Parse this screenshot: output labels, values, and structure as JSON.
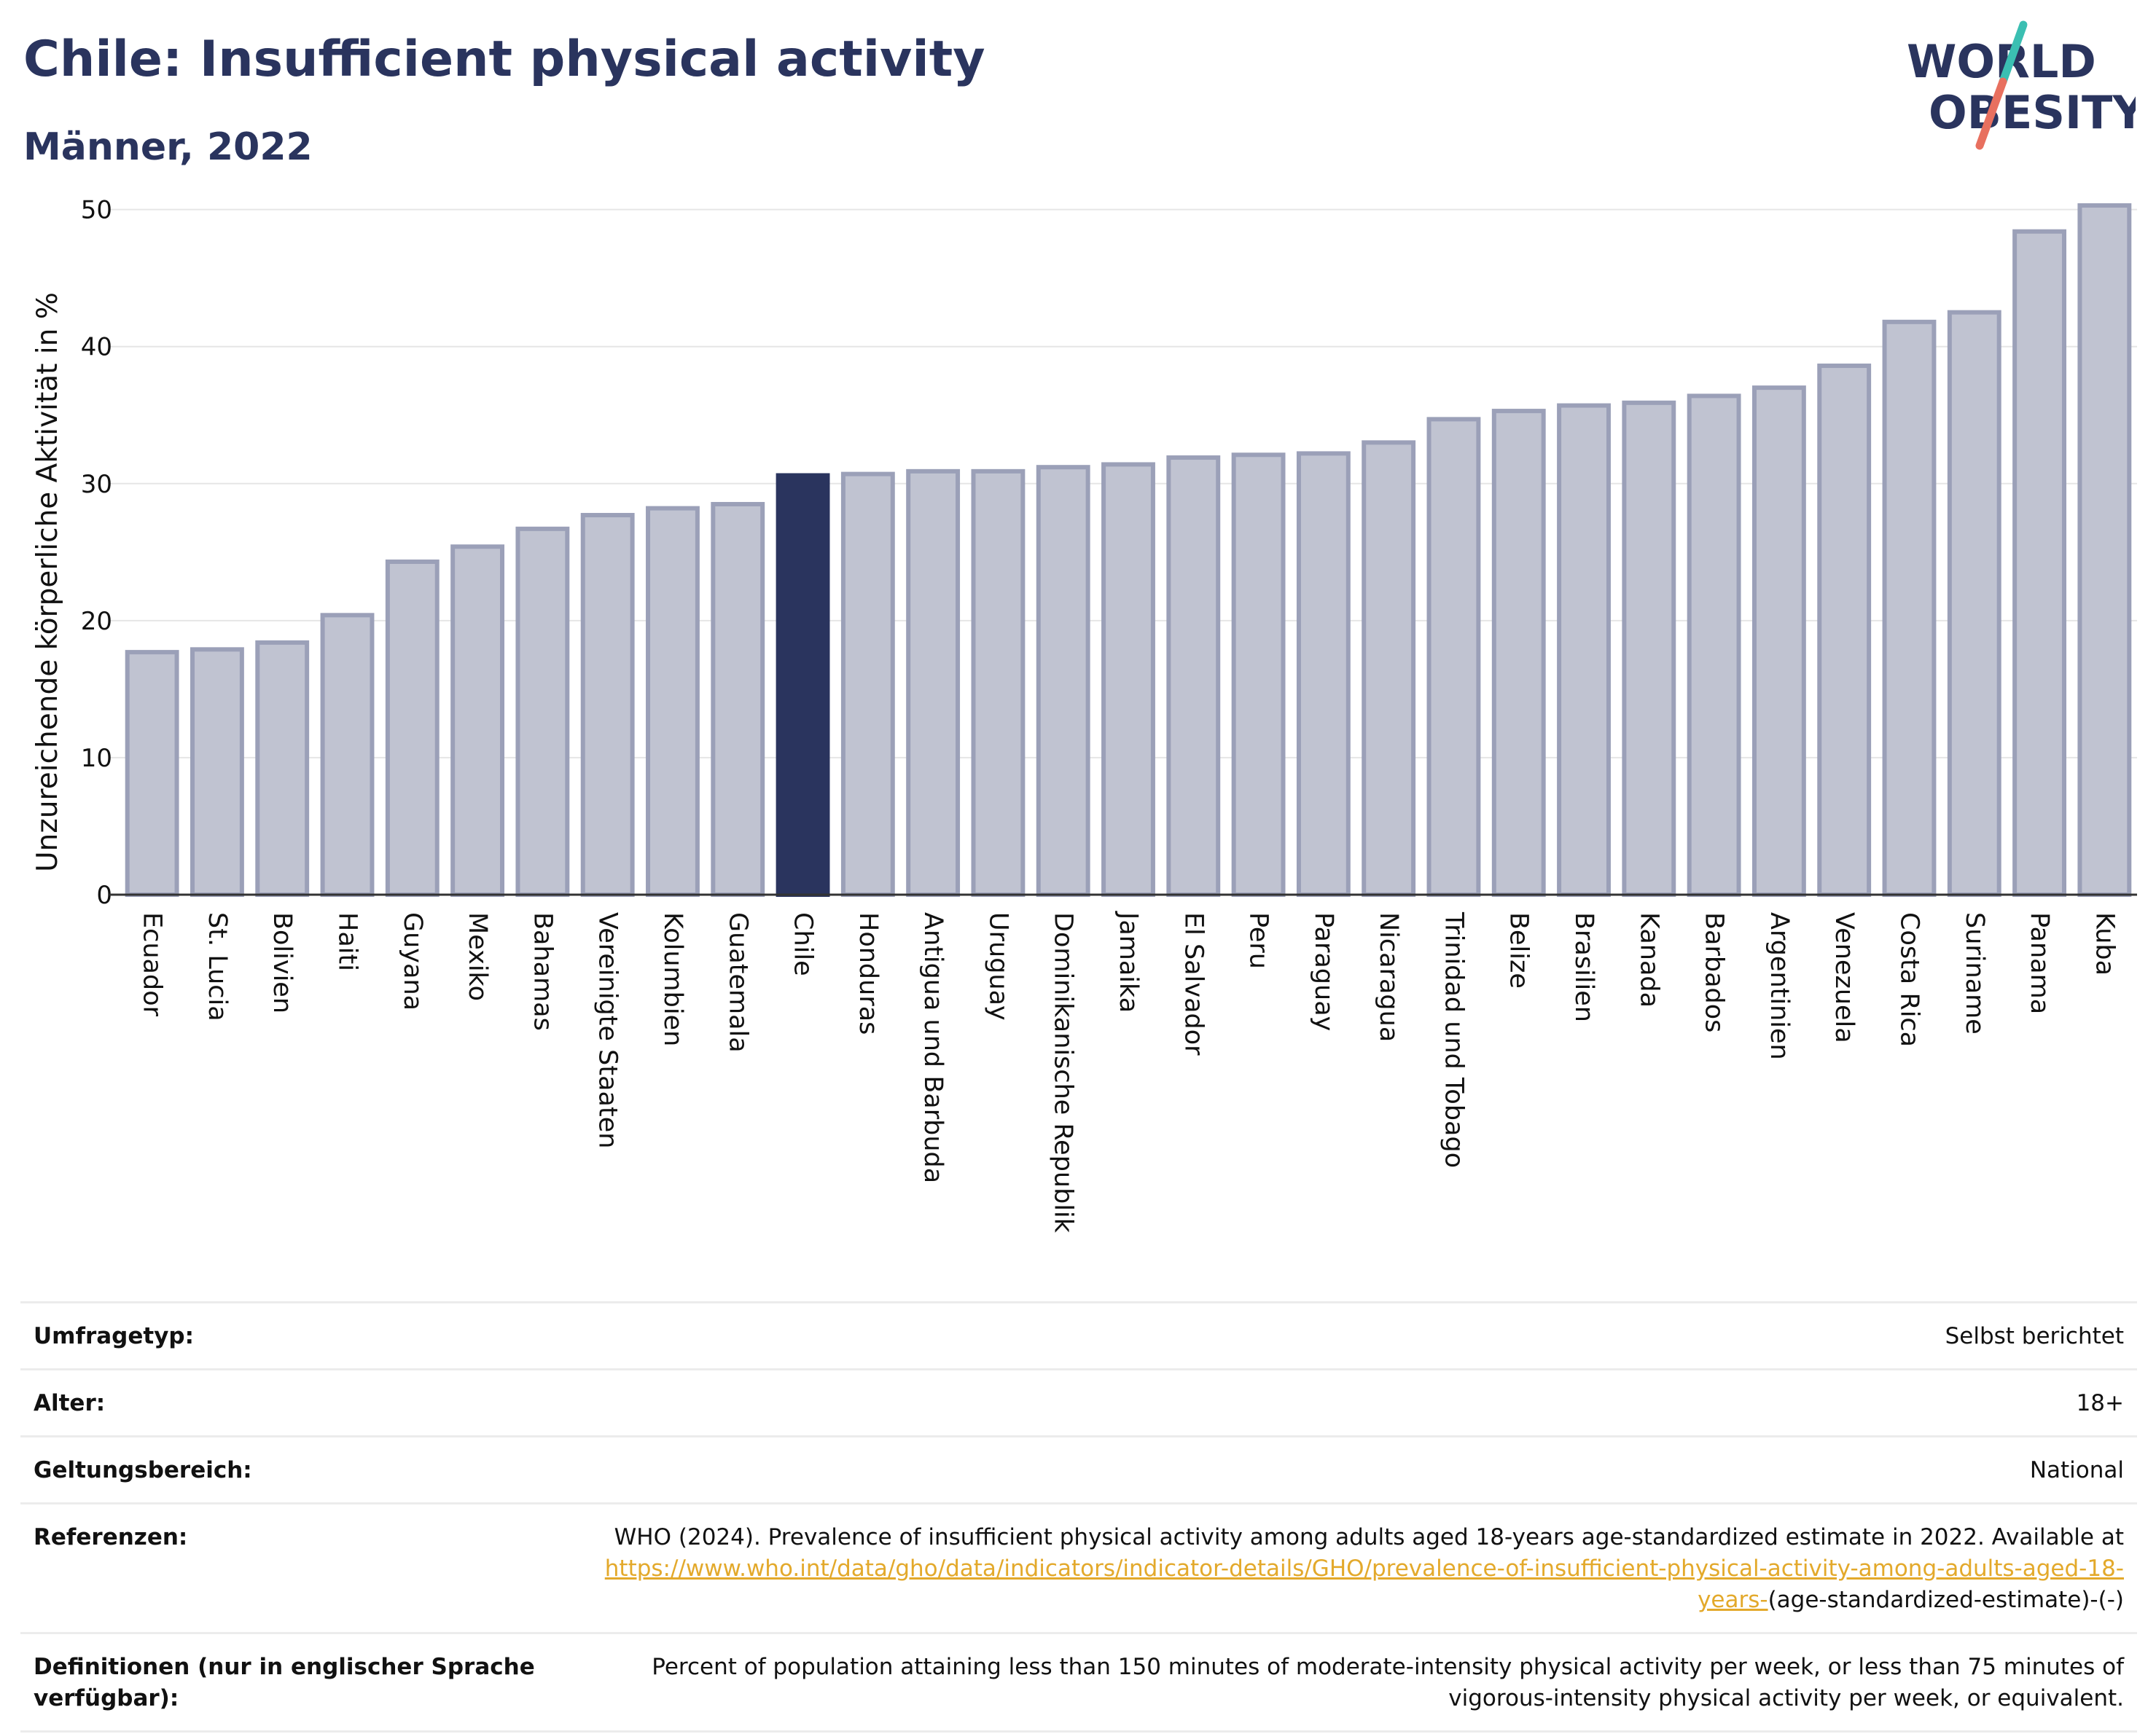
{
  "header": {
    "title": "Chile: Insufficient physical activity",
    "subtitle": "Männer, 2022"
  },
  "logo": {
    "line1": "WORLD",
    "line2": "OBESITY"
  },
  "colors": {
    "bar": "#c0c3d1",
    "bar_border": "#9ba0b8",
    "highlight": "#2a345e",
    "accent_teal": "#3bbfb2",
    "accent_coral": "#e8705f",
    "link": "#e3a92b"
  },
  "chart_data": {
    "type": "bar",
    "title": "Chile: Insufficient physical activity",
    "subtitle": "Männer, 2022",
    "xlabel": "",
    "ylabel": "Unzureichende körperliche Aktivität in %",
    "ylim": [
      0,
      52
    ],
    "yticks": [
      0,
      10,
      20,
      30,
      40,
      50
    ],
    "grid": true,
    "highlight": "Chile",
    "categories": [
      "Ecuador",
      "St. Lucia",
      "Bolivien",
      "Haiti",
      "Guyana",
      "Mexiko",
      "Bahamas",
      "Vereinigte Staaten",
      "Kolumbien",
      "Guatemala",
      "Chile",
      "Honduras",
      "Antigua und Barbuda",
      "Uruguay",
      "Dominikanische Republik",
      "Jamaika",
      "El Salvador",
      "Peru",
      "Paraguay",
      "Nicaragua",
      "Trinidad und Tobago",
      "Belize",
      "Brasilien",
      "Kanada",
      "Barbados",
      "Argentinien",
      "Venezuela",
      "Costa Rica",
      "Suriname",
      "Panama",
      "Kuba"
    ],
    "values": [
      17.7,
      17.9,
      18.4,
      20.4,
      24.3,
      25.4,
      26.7,
      27.7,
      28.2,
      28.5,
      30.6,
      30.7,
      30.9,
      30.9,
      31.2,
      31.4,
      31.9,
      32.1,
      32.2,
      33.0,
      34.7,
      35.3,
      35.7,
      35.9,
      36.4,
      37.0,
      38.6,
      41.8,
      42.5,
      48.4,
      50.3
    ]
  },
  "meta": {
    "rows": [
      {
        "label": "Umfragetyp:",
        "value": "Selbst berichtet"
      },
      {
        "label": "Alter:",
        "value": "18+"
      },
      {
        "label": "Geltungsbereich:",
        "value": "National"
      }
    ],
    "references": {
      "label": "Referenzen:",
      "text": "WHO (2024). Prevalence of insufficient physical activity among adults aged 18-years age-standardized estimate in 2022. Available at",
      "link": "https://www.who.int/data/gho/data/indicators/indicator-details/GHO/prevalence-of-insufficient-physical-activity-among-adults-aged-18-years-",
      "suffix": "(age-standardized-estimate)-(-)"
    },
    "definitions": {
      "label": "Definitionen (nur in englischer Sprache verfügbar):",
      "value": "Percent of population attaining less than 150 minutes of moderate-intensity physical activity per week, or less than 75 minutes of vigorous-intensity physical activity per week, or equivalent."
    }
  }
}
